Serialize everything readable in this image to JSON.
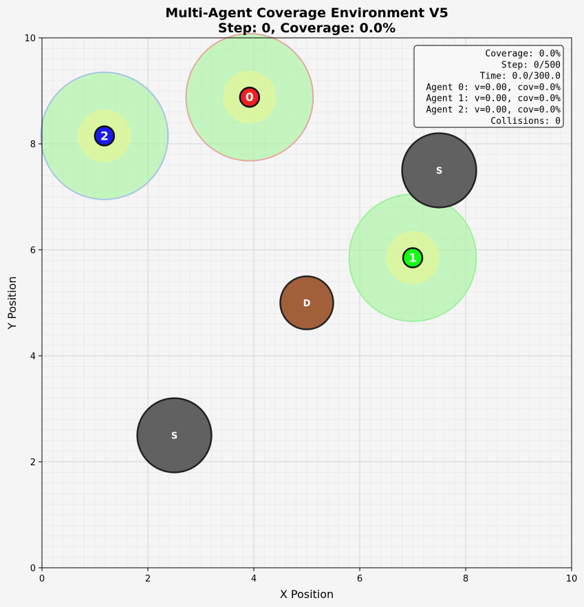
{
  "chart_data": {
    "type": "scatter",
    "title": [
      "Multi-Agent Coverage Environment V5",
      "Step: 0, Coverage: 0.0%"
    ],
    "xlabel": "X Position",
    "ylabel": "Y Position",
    "xlim": [
      0,
      10
    ],
    "ylim": [
      0,
      10
    ],
    "xticks": [
      "0",
      "2",
      "4",
      "6",
      "8",
      "10"
    ],
    "yticks": [
      "0",
      "2",
      "4",
      "6",
      "8",
      "10"
    ],
    "grid": true,
    "agents": [
      {
        "label": "0",
        "x": 3.92,
        "y": 8.88,
        "color": "#ee2020",
        "sensor_radius": 1.2,
        "inner_radius": 0.5,
        "ring_color": "#e3aaa0"
      },
      {
        "label": "1",
        "x": 7.0,
        "y": 5.85,
        "color": "#11ff11",
        "sensor_radius": 1.2,
        "inner_radius": 0.5,
        "ring_color": "#9ff0a0"
      },
      {
        "label": "2",
        "x": 1.18,
        "y": 8.15,
        "color": "#1a1aee",
        "sensor_radius": 1.2,
        "inner_radius": 0.5,
        "ring_color": "#a8c4e8"
      }
    ],
    "obstacles": [
      {
        "label": "S",
        "x": 7.5,
        "y": 7.5,
        "radius": 0.7,
        "color": "#616161"
      },
      {
        "label": "S",
        "x": 2.5,
        "y": 2.5,
        "radius": 0.7,
        "color": "#616161"
      },
      {
        "label": "D",
        "x": 5.0,
        "y": 5.0,
        "radius": 0.5,
        "color": "#a2603a"
      }
    ],
    "sensor_fill": "#aaf5a0",
    "inner_fill": "#e2f59a",
    "info_box": [
      "Coverage: 0.0%",
      "Step: 0/500",
      "Time: 0.0/300.0",
      "Agent 0: v=0.00, cov=0.0%",
      "Agent 1: v=0.00, cov=0.0%",
      "Agent 2: v=0.00, cov=0.0%",
      "Collisions: 0"
    ]
  }
}
